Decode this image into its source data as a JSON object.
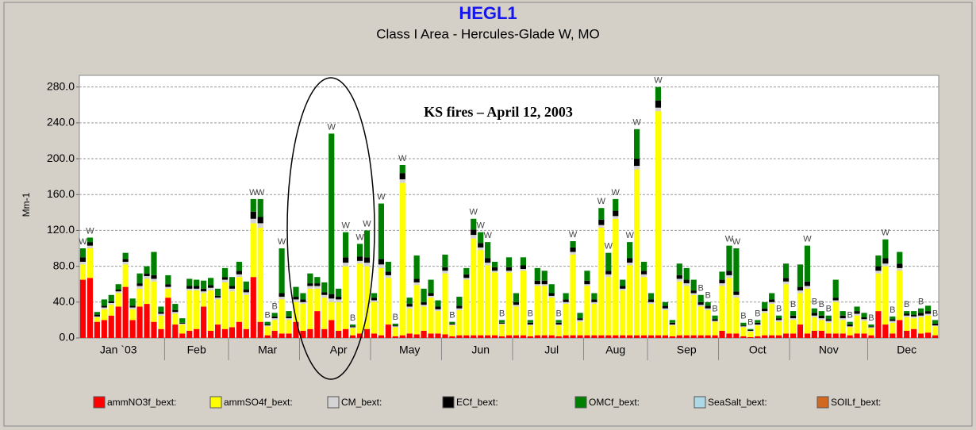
{
  "chart_data": {
    "type": "stacked_bar",
    "title": "HEGL1",
    "subtitle": "Class I Area - Hercules-Glade W, MO",
    "y_label": "Mm-1",
    "annotation": "KS fires – April 12, 2003",
    "ylim": [
      0,
      293
    ],
    "yticks": [
      {
        "value": 0,
        "label": "0.0"
      },
      {
        "value": 40,
        "label": "40.0"
      },
      {
        "value": 80,
        "label": "80.0"
      },
      {
        "value": 120,
        "label": "120.0"
      },
      {
        "value": 160,
        "label": "160.0"
      },
      {
        "value": 200,
        "label": "200.0"
      },
      {
        "value": 240,
        "label": "240.0"
      },
      {
        "value": 280,
        "label": "280.0"
      }
    ],
    "grid": true,
    "categories": [
      null,
      null,
      null,
      null,
      null,
      "Jan `03",
      null,
      null,
      null,
      null,
      null,
      null,
      null,
      null,
      null,
      null,
      "Feb",
      null,
      null,
      null,
      null,
      null,
      null,
      null,
      null,
      null,
      "Mar",
      null,
      null,
      null,
      null,
      null,
      null,
      null,
      null,
      null,
      "Apr",
      null,
      null,
      null,
      null,
      null,
      null,
      null,
      null,
      null,
      "May",
      null,
      null,
      null,
      null,
      null,
      null,
      null,
      null,
      null,
      "Jun",
      null,
      null,
      null,
      null,
      null,
      null,
      null,
      null,
      null,
      "Jul",
      null,
      null,
      null,
      null,
      null,
      null,
      null,
      null,
      "Aug",
      null,
      null,
      null,
      null,
      null,
      null,
      null,
      null,
      null,
      "Sep",
      null,
      null,
      null,
      null,
      null,
      null,
      null,
      null,
      null,
      "Oct",
      null,
      null,
      null,
      null,
      null,
      null,
      null,
      null,
      null,
      "Nov",
      null,
      null,
      null,
      null,
      null,
      null,
      null,
      null,
      null,
      null,
      "Dec",
      null,
      null,
      null,
      null
    ],
    "flags": [
      "W",
      "W",
      null,
      null,
      null,
      null,
      null,
      null,
      null,
      null,
      null,
      null,
      null,
      null,
      null,
      null,
      null,
      null,
      null,
      null,
      null,
      null,
      null,
      null,
      "W",
      "W",
      "B",
      "B",
      "W",
      null,
      null,
      null,
      null,
      null,
      null,
      "W",
      null,
      "W",
      "B",
      "W",
      "W",
      null,
      "W",
      null,
      "B",
      "W",
      null,
      null,
      null,
      null,
      null,
      null,
      "B",
      null,
      null,
      "W",
      "W",
      "W",
      null,
      "B",
      null,
      null,
      null,
      "B",
      null,
      null,
      null,
      "B",
      null,
      "W",
      null,
      null,
      null,
      "W",
      "W",
      "W",
      null,
      "W",
      "W",
      null,
      null,
      "W",
      null,
      null,
      null,
      null,
      null,
      "B",
      "B",
      "B",
      null,
      "W",
      "W",
      "B",
      "B",
      "B",
      null,
      null,
      "B",
      null,
      "B",
      null,
      "W",
      "B",
      "B",
      "B",
      null,
      null,
      "B",
      null,
      null,
      "B",
      null,
      "W",
      "B",
      null,
      "B",
      null,
      "B",
      null,
      "B"
    ],
    "series": [
      {
        "name": "ammNO3f_bext:",
        "color": "#ff0000",
        "values": [
          65,
          67,
          18,
          20,
          25,
          35,
          57,
          20,
          35,
          38,
          18,
          10,
          45,
          15,
          5,
          8,
          10,
          35,
          8,
          15,
          10,
          12,
          18,
          10,
          68,
          18,
          3,
          8,
          5,
          5,
          18,
          8,
          10,
          30,
          10,
          20,
          8,
          10,
          3,
          5,
          10,
          5,
          3,
          15,
          2,
          3,
          5,
          4,
          8,
          5,
          5,
          4,
          2,
          3,
          3,
          3,
          3,
          3,
          3,
          2,
          3,
          3,
          3,
          2,
          3,
          3,
          3,
          2,
          3,
          3,
          3,
          3,
          3,
          3,
          3,
          3,
          3,
          3,
          3,
          3,
          3,
          3,
          3,
          2,
          3,
          3,
          3,
          3,
          3,
          3,
          8,
          5,
          5,
          2,
          1,
          2,
          3,
          3,
          3,
          5,
          5,
          15,
          5,
          8,
          8,
          5,
          5,
          5,
          3,
          5,
          5,
          3,
          30,
          15,
          5,
          20,
          8,
          10,
          5,
          6,
          3
        ]
      },
      {
        "name": "ammSO4f_bext:",
        "color": "#ffff00",
        "values": [
          17,
          33,
          5,
          12,
          12,
          15,
          25,
          12,
          20,
          28,
          45,
          15,
          10,
          12,
          10,
          45,
          43,
          15,
          45,
          28,
          52,
          40,
          50,
          38,
          60,
          105,
          10,
          12,
          38,
          15,
          22,
          30,
          45,
          25,
          35,
          20,
          32,
          70,
          8,
          78,
          70,
          35,
          75,
          52,
          10,
          170,
          28,
          55,
          27,
          40,
          25,
          68,
          12,
          28,
          62,
          108,
          95,
          78,
          70,
          13,
          70,
          32,
          72,
          12,
          55,
          55,
          42,
          12,
          35,
          90,
          15,
          55,
          35,
          120,
          65,
          130,
          50,
          78,
          185,
          65,
          35,
          250,
          28,
          12,
          60,
          55,
          45,
          32,
          28,
          15,
          50,
          62,
          40,
          10,
          6,
          12,
          25,
          35,
          15,
          55,
          15,
          35,
          50,
          15,
          12,
          12,
          35,
          15,
          9,
          20,
          14,
          8,
          42,
          65,
          12,
          55,
          15,
          12,
          18,
          19,
          10
        ]
      },
      {
        "name": "CM_bext:",
        "color": "#d4d4d4",
        "values": [
          3,
          3,
          1,
          2,
          2,
          2,
          3,
          2,
          3,
          3,
          3,
          2,
          2,
          2,
          1,
          2,
          2,
          2,
          3,
          2,
          3,
          3,
          3,
          3,
          5,
          5,
          1,
          2,
          3,
          2,
          3,
          2,
          3,
          3,
          3,
          4,
          3,
          4,
          1,
          3,
          4,
          2,
          4,
          3,
          1,
          4,
          2,
          3,
          2,
          2,
          2,
          3,
          1,
          2,
          2,
          4,
          3,
          3,
          2,
          1,
          2,
          2,
          2,
          1,
          2,
          2,
          2,
          1,
          2,
          3,
          2,
          2,
          2,
          3,
          3,
          3,
          2,
          3,
          4,
          3,
          2,
          4,
          2,
          1,
          3,
          3,
          2,
          2,
          2,
          1,
          3,
          3,
          3,
          1,
          1,
          1,
          2,
          2,
          2,
          3,
          2,
          3,
          3,
          2,
          2,
          2,
          2,
          2,
          1,
          2,
          2,
          1,
          3,
          3,
          2,
          3,
          2,
          2,
          2,
          2,
          1
        ]
      },
      {
        "name": "ECf_bext:",
        "color": "#000000",
        "values": [
          5,
          4,
          2,
          2,
          2,
          2,
          3,
          2,
          3,
          3,
          4,
          2,
          3,
          2,
          1,
          3,
          3,
          3,
          3,
          2,
          3,
          3,
          4,
          3,
          8,
          7,
          1,
          2,
          4,
          2,
          3,
          3,
          3,
          3,
          3,
          5,
          3,
          6,
          1,
          5,
          6,
          3,
          6,
          4,
          1,
          7,
          3,
          4,
          3,
          3,
          3,
          4,
          1,
          3,
          4,
          6,
          5,
          5,
          4,
          1,
          4,
          3,
          4,
          2,
          4,
          4,
          3,
          2,
          3,
          5,
          2,
          4,
          3,
          6,
          4,
          6,
          3,
          5,
          8,
          4,
          3,
          8,
          3,
          2,
          4,
          4,
          3,
          3,
          3,
          2,
          4,
          5,
          4,
          1,
          1,
          2,
          3,
          3,
          2,
          4,
          3,
          4,
          5,
          3,
          3,
          2,
          3,
          3,
          2,
          3,
          2,
          1,
          5,
          6,
          2,
          5,
          2,
          2,
          3,
          3,
          2
        ]
      },
      {
        "name": "OMCf_bext:",
        "color": "#008000",
        "values": [
          10,
          5,
          3,
          7,
          7,
          6,
          7,
          8,
          11,
          8,
          26,
          6,
          10,
          7,
          5,
          8,
          7,
          9,
          8,
          8,
          10,
          10,
          10,
          9,
          14,
          20,
          3,
          4,
          50,
          6,
          11,
          7,
          11,
          7,
          11,
          179,
          9,
          28,
          2,
          14,
          30,
          5,
          62,
          11,
          2,
          9,
          7,
          26,
          15,
          15,
          7,
          14,
          2,
          10,
          7,
          12,
          12,
          18,
          6,
          3,
          11,
          10,
          9,
          3,
          14,
          11,
          10,
          3,
          7,
          7,
          6,
          11,
          7,
          13,
          20,
          13,
          7,
          18,
          33,
          10,
          7,
          15,
          4,
          3,
          13,
          13,
          12,
          8,
          4,
          4,
          9,
          28,
          48,
          3,
          1,
          3,
          7,
          7,
          3,
          16,
          5,
          25,
          40,
          5,
          5,
          4,
          20,
          5,
          3,
          5,
          5,
          2,
          12,
          21,
          3,
          13,
          3,
          4,
          5,
          6,
          4
        ]
      },
      {
        "name": "SeaSalt_bext:",
        "color": "#add8e6",
        "values": [
          0,
          0,
          0,
          0,
          0,
          0,
          0,
          0,
          0,
          0,
          0,
          0,
          0,
          0,
          0,
          0,
          0,
          0,
          0,
          0,
          0,
          0,
          0,
          0,
          0,
          0,
          0,
          0,
          0,
          0,
          0,
          0,
          0,
          0,
          0,
          0,
          0,
          0,
          0,
          0,
          0,
          0,
          0,
          0,
          0,
          0,
          0,
          0,
          0,
          0,
          0,
          0,
          0,
          0,
          0,
          0,
          0,
          0,
          0,
          0,
          0,
          0,
          0,
          0,
          0,
          0,
          0,
          0,
          0,
          0,
          0,
          0,
          0,
          0,
          0,
          0,
          0,
          0,
          0,
          0,
          0,
          0,
          0,
          0,
          0,
          0,
          0,
          0,
          0,
          0,
          0,
          0,
          0,
          0,
          0,
          0,
          0,
          0,
          0,
          0,
          0,
          0,
          0,
          0,
          0,
          0,
          0,
          0,
          0,
          0,
          0,
          0,
          0,
          0,
          0,
          0,
          0,
          0,
          0,
          0,
          0
        ]
      },
      {
        "name": "SOILf_bext:",
        "color": "#d2691e",
        "values": [
          0,
          0,
          0,
          0,
          0,
          0,
          0,
          0,
          0,
          0,
          0,
          0,
          0,
          0,
          0,
          0,
          0,
          0,
          0,
          0,
          0,
          0,
          0,
          0,
          0,
          0,
          0,
          0,
          0,
          0,
          0,
          0,
          0,
          0,
          0,
          0,
          0,
          0,
          0,
          0,
          0,
          0,
          0,
          0,
          0,
          0,
          0,
          0,
          0,
          0,
          0,
          0,
          0,
          0,
          0,
          0,
          0,
          0,
          0,
          0,
          0,
          0,
          0,
          0,
          0,
          0,
          0,
          0,
          0,
          0,
          0,
          0,
          0,
          0,
          0,
          0,
          0,
          0,
          0,
          0,
          0,
          0,
          0,
          0,
          0,
          0,
          0,
          0,
          0,
          0,
          0,
          0,
          0,
          0,
          0,
          0,
          0,
          0,
          0,
          0,
          0,
          0,
          0,
          0,
          0,
          0,
          0,
          0,
          0,
          0,
          0,
          0,
          0,
          0,
          0,
          0,
          0,
          0,
          0,
          0,
          0
        ]
      }
    ]
  }
}
